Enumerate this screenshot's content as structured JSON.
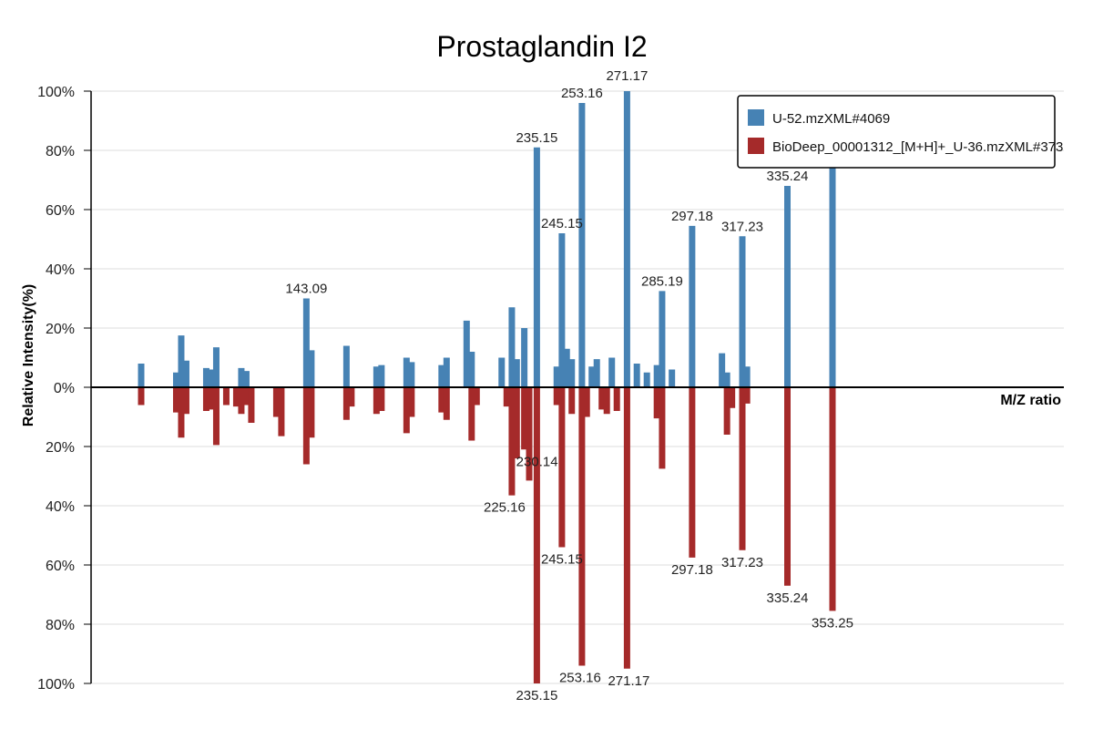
{
  "chart_data": {
    "type": "bar",
    "subtype": "mirror-mass-spectrum",
    "title": "Prostaglandin I2",
    "xlabel": "M/Z ratio",
    "ylabel": "Relative Intensity(%)",
    "ylim": [
      -100,
      100
    ],
    "y_ticks": [
      "100%",
      "80%",
      "60%",
      "40%",
      "20%",
      "0%",
      "20%",
      "40%",
      "60%",
      "80%",
      "100%"
    ],
    "grid": true,
    "legend_position": "top-right",
    "series": [
      {
        "name": "U-52.mzXML#4069",
        "color": "#4682b4",
        "direction": "up",
        "x": [
          77.1,
          91.1,
          93.1,
          95.1,
          103.1,
          105.1,
          107.1,
          117.1,
          119.1,
          143.09,
          145.1,
          159.1,
          171.1,
          173.1,
          183.1,
          185.1,
          197.1,
          199.1,
          207.1,
          209.1,
          221.1,
          225.16,
          227.1,
          230.14,
          235.15,
          243.1,
          245.15,
          247.1,
          249.1,
          253.16,
          257.1,
          259.1,
          265.1,
          271.17,
          275.1,
          279.1,
          283.1,
          285.19,
          289.1,
          297.18,
          309.1,
          311.1,
          317.23,
          319.1,
          335.24,
          353.25
        ],
        "values": [
          8,
          5,
          17.5,
          9,
          6.5,
          6,
          13.5,
          6.5,
          5.5,
          30,
          12.5,
          14,
          7,
          7.5,
          10,
          8.5,
          7.5,
          10,
          22.5,
          12,
          10,
          27,
          9.5,
          20,
          81,
          7,
          52,
          13,
          9.5,
          96,
          7,
          9.5,
          10,
          100,
          8,
          5,
          7.5,
          32.5,
          6,
          54.5,
          11.5,
          5,
          51,
          7,
          68,
          75.5
        ]
      },
      {
        "name": "BioDeep_00001312_[M+H]+_U-36.mzXML#373",
        "color": "#a52a2a",
        "direction": "down",
        "x": [
          77.1,
          91.1,
          93.1,
          95.1,
          103.1,
          105.1,
          107.1,
          111.1,
          115.1,
          117.1,
          119.1,
          121.1,
          131.1,
          133.1,
          143.09,
          145.1,
          159.1,
          161.1,
          171.1,
          173.1,
          183.1,
          185.1,
          197.1,
          199.1,
          209.1,
          211.1,
          223.1,
          225.16,
          227.1,
          230.14,
          232.1,
          235.15,
          243.1,
          245.15,
          249.1,
          253.16,
          255.1,
          261.1,
          263.1,
          267.1,
          271.17,
          283.1,
          285.19,
          297.18,
          311.1,
          313.1,
          317.23,
          319.1,
          335.24,
          353.25
        ],
        "values": [
          6,
          8.5,
          17,
          9,
          8,
          7.5,
          19.5,
          6,
          6.5,
          9,
          6,
          12,
          10,
          16.5,
          26,
          17,
          11,
          6.5,
          9,
          8,
          15.5,
          10,
          8.5,
          11,
          18,
          6,
          6.5,
          36.5,
          24,
          21,
          31.5,
          100,
          6,
          54,
          9,
          94,
          10,
          7.5,
          9,
          8,
          95,
          10.5,
          27.5,
          57.5,
          16,
          7,
          55,
          5.5,
          67,
          75.5
        ]
      }
    ],
    "annotations_top": [
      {
        "x": 143.09,
        "label": "143.09"
      },
      {
        "x": 235.15,
        "label": "235.15"
      },
      {
        "x": 245.15,
        "label": "245.15"
      },
      {
        "x": 253.16,
        "label": "253.16"
      },
      {
        "x": 271.17,
        "label": "271.17"
      },
      {
        "x": 285.19,
        "label": "285.19"
      },
      {
        "x": 297.18,
        "label": "297.18"
      },
      {
        "x": 317.23,
        "label": "317.23"
      },
      {
        "x": 335.24,
        "label": "335.24"
      }
    ],
    "annotations_bottom": [
      {
        "x": 230.14,
        "label": "230.14"
      },
      {
        "x": 225.16,
        "label": "225.16"
      },
      {
        "x": 245.15,
        "label": "245.15"
      },
      {
        "x": 297.18,
        "label": "297.18"
      },
      {
        "x": 317.23,
        "label": "317.23"
      },
      {
        "x": 335.24,
        "label": "335.24"
      },
      {
        "x": 353.25,
        "label": "353.25"
      },
      {
        "x": 253.16,
        "label": "253.16"
      },
      {
        "x": 271.17,
        "label": "271.17"
      },
      {
        "x": 235.15,
        "label": "235.15"
      }
    ]
  }
}
